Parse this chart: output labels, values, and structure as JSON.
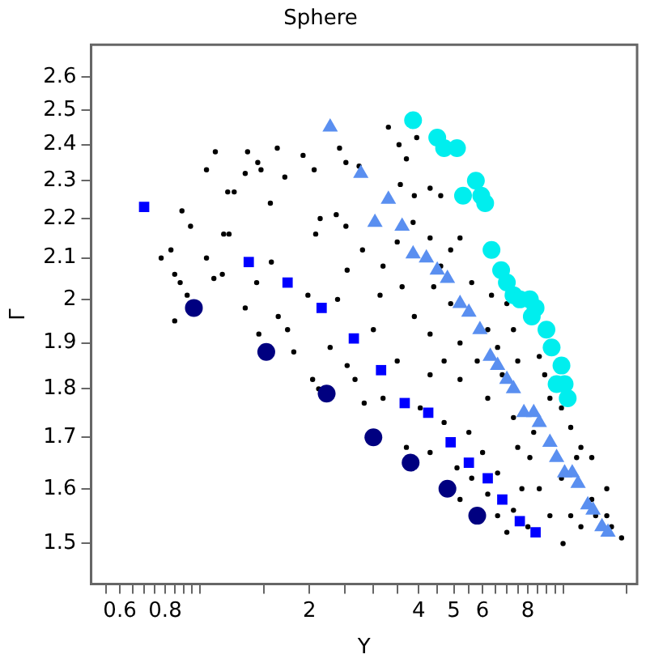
{
  "chart_data": {
    "type": "scatter",
    "title": "Sphere",
    "xlabel": "Y",
    "ylabel": "Γ",
    "log": "xy",
    "grid": false,
    "legend": false,
    "xlim": [
      0.5,
      16
    ],
    "ylim": [
      1.43,
      2.7
    ],
    "xticks": [
      {
        "value": 0.55,
        "label": null
      },
      0.6,
      {
        "value": 0.65,
        "label": null
      },
      {
        "value": 0.7,
        "label": null
      },
      {
        "value": 0.75,
        "label": null
      },
      0.8,
      {
        "value": 0.85,
        "label": null
      },
      {
        "value": 0.9,
        "label": null
      },
      {
        "value": 0.95,
        "label": null
      },
      {
        "value": 1,
        "label": null
      },
      {
        "value": 1.5,
        "label": null
      },
      2,
      {
        "value": 2.5,
        "label": null
      },
      {
        "value": 3,
        "label": null
      },
      {
        "value": 3.5,
        "label": null
      },
      4,
      {
        "value": 4.5,
        "label": null
      },
      5,
      {
        "value": 5.5,
        "label": null
      },
      6,
      {
        "value": 6.5,
        "label": null
      },
      {
        "value": 7,
        "label": null
      },
      {
        "value": 7.5,
        "label": null
      },
      8,
      {
        "value": 8.5,
        "label": null
      },
      {
        "value": 9,
        "label": null
      },
      {
        "value": 9.5,
        "label": null
      },
      {
        "value": 10,
        "label": null
      },
      {
        "value": 15,
        "label": null
      }
    ],
    "yticks": [
      1.5,
      1.6,
      1.7,
      1.8,
      1.9,
      2,
      2.1,
      2.2,
      2.3,
      2.4,
      2.5,
      2.6
    ],
    "series": [
      {
        "color": "#00eeee",
        "marker": "circle",
        "x": [
          3.86,
          4.5,
          4.7,
          5.1,
          5.75,
          5.3,
          5.7,
          5.95,
          6.1,
          6.35,
          6.75,
          7.0,
          7.3,
          7.6,
          8.1,
          8.4,
          8.2,
          8.8,
          9.0,
          9.3,
          9.9,
          9.6,
          10.1,
          10.3
        ],
        "values": [
          2.47,
          2.42,
          2.39,
          2.39,
          2.3,
          2.26,
          null,
          2.26,
          2.24,
          2.12,
          2.07,
          2.04,
          2.01,
          2.0,
          2.0,
          1.98,
          1.96,
          null,
          1.93,
          1.89,
          1.85,
          1.81,
          1.81,
          1.78
        ]
      },
      {
        "color": "#5a8ff0",
        "marker": "triangle",
        "x": [
          2.28,
          2.77,
          3.3,
          3.03,
          3.6,
          3.86,
          4.2,
          4.5,
          4.8,
          5.2,
          5.5,
          5.9,
          6.3,
          6.6,
          7.0,
          7.3,
          7.8,
          8.3,
          8.6,
          9.2,
          9.6,
          10.1,
          10.6,
          11.0,
          11.7,
          12.1,
          12.8,
          13.3
        ],
        "values": [
          2.45,
          2.32,
          2.25,
          2.19,
          2.18,
          2.11,
          2.1,
          2.07,
          2.05,
          1.99,
          1.97,
          1.93,
          1.87,
          1.85,
          1.82,
          1.8,
          1.75,
          1.75,
          1.73,
          1.69,
          1.66,
          1.63,
          1.63,
          1.61,
          1.57,
          1.56,
          1.53,
          1.52
        ]
      },
      {
        "color": "#0000ff",
        "marker": "square",
        "x": [
          0.7,
          1.36,
          1.74,
          2.16,
          2.65,
          3.15,
          3.66,
          4.25,
          4.9,
          5.5,
          6.2,
          6.8,
          7.6,
          8.4
        ],
        "values": [
          2.23,
          2.09,
          2.04,
          1.98,
          1.91,
          1.84,
          1.77,
          1.75,
          1.69,
          1.65,
          1.62,
          1.58,
          1.54,
          1.52
        ]
      },
      {
        "color": "#000080",
        "marker": "circle",
        "x": [
          0.96,
          1.52,
          2.23,
          3.0,
          3.8,
          4.8,
          5.8
        ],
        "values": [
          1.98,
          1.88,
          1.79,
          1.7,
          1.65,
          1.6,
          1.55
        ]
      },
      {
        "color": "#000000",
        "marker": "circle",
        "x": [
          0.85,
          0.78,
          0.83,
          0.85,
          0.88,
          0.92,
          0.89,
          0.94,
          1.04,
          1.1,
          1.16,
          1.19,
          1.24,
          1.2,
          1.04,
          1.09,
          1.15,
          1.33,
          1.35,
          1.33,
          1.44,
          1.47,
          1.63,
          1.71,
          1.56,
          1.57,
          1.43,
          1.45,
          1.64,
          1.74,
          1.81,
          1.92,
          2.06,
          2.14,
          2.08,
          1.98,
          2.04,
          2.12,
          2.42,
          2.52,
          2.74,
          2.37,
          2.52,
          2.8,
          2.54,
          2.39,
          2.28,
          2.54,
          2.67,
          2.83,
          3.3,
          3.53,
          3.7,
          3.95,
          3.56,
          3.89,
          3.49,
          3.86,
          3.19,
          3.13,
          3.6,
          3.89,
          3.0,
          3.49,
          3.19,
          3.7,
          4.04,
          4.3,
          4.6,
          4.3,
          4.9,
          4.6,
          5.2,
          4.4,
          4.9,
          4.3,
          4.7,
          4.3,
          5.2,
          5.2,
          4.7,
          4.3,
          5.1,
          5.5,
          5.2,
          5.6,
          6.0,
          6.2,
          5.8,
          6.2,
          6.35,
          5.6,
          6.6,
          6.8,
          7.3,
          6.6,
          6.2,
          6.6,
          7.3,
          7.0,
          8.0,
          7.7,
          8.1,
          8.6,
          9.2,
          10.0,
          10.5,
          11.2,
          12.3,
          13.6,
          14.5,
          13.2,
          12.0,
          11.2,
          10.5,
          9.9,
          8.9,
          7.5,
          7.3,
          7.0,
          8.6,
          9.2,
          10.9,
          12.0,
          13.2,
          9.9,
          8.3,
          7.5
        ],
        "values": [
          1.95,
          2.1,
          2.12,
          2.06,
          2.04,
          2.01,
          2.22,
          2.18,
          2.33,
          2.38,
          2.16,
          2.27,
          2.27,
          2.16,
          2.1,
          2.05,
          2.06,
          1.98,
          2.38,
          2.32,
          2.35,
          2.33,
          2.39,
          2.31,
          2.24,
          2.09,
          2.04,
          1.92,
          1.96,
          1.93,
          1.88,
          2.37,
          2.33,
          2.2,
          2.16,
          2.01,
          1.82,
          1.8,
          2.39,
          2.35,
          2.34,
          2.21,
          2.18,
          2.12,
          2.07,
          2.0,
          1.89,
          1.85,
          1.82,
          1.77,
          2.45,
          2.4,
          2.36,
          2.42,
          2.29,
          2.26,
          2.14,
          2.19,
          2.08,
          2.01,
          2.03,
          1.96,
          1.93,
          1.86,
          1.78,
          1.68,
          1.76,
          2.28,
          2.26,
          2.15,
          2.12,
          2.08,
          2.15,
          2.03,
          1.99,
          1.92,
          1.86,
          1.83,
          1.9,
          1.82,
          1.73,
          1.67,
          1.64,
          1.71,
          1.58,
          1.62,
          1.67,
          1.78,
          1.86,
          1.93,
          2.01,
          2.04,
          1.89,
          1.83,
          1.74,
          1.63,
          1.59,
          1.55,
          1.56,
          1.52,
          1.53,
          1.6,
          1.66,
          1.6,
          1.55,
          1.5,
          1.55,
          1.53,
          1.55,
          1.53,
          1.51,
          1.6,
          1.66,
          1.68,
          1.72,
          1.76,
          1.83,
          1.86,
          1.93,
          1.99,
          1.87,
          1.78,
          1.66,
          1.58,
          1.55,
          1.62,
          1.71,
          1.68
        ]
      }
    ]
  }
}
